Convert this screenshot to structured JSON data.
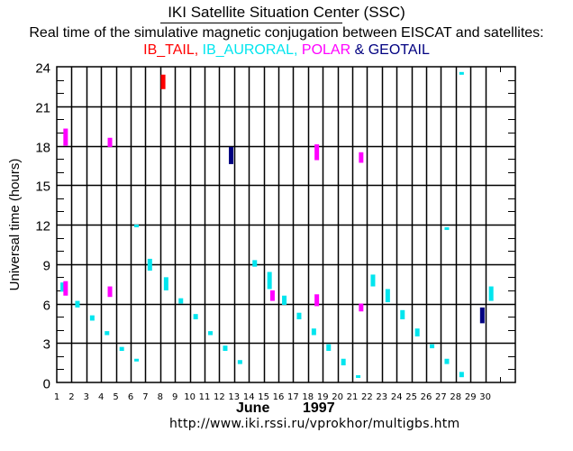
{
  "header": {
    "title": "IKI Satellite Situation Center (SSC)",
    "subtitle": "Real time of the simulative magnetic conjugation between EISCAT and satellites:"
  },
  "legend": [
    {
      "label": "IB_TAIL,",
      "color": "#ff0000"
    },
    {
      "label": " IB_AURORAL,",
      "color": "#00e5ee"
    },
    {
      "label": " POLAR",
      "color": "#ff00ff"
    },
    {
      "label": " & GEOTAIL",
      "color": "#000080"
    }
  ],
  "footer": {
    "month": "June",
    "year": "1997",
    "url": "http://www.iki.rssi.ru/vprokhor/multigbs.htm"
  },
  "chart_data": {
    "type": "scatter",
    "title": "IKI Satellite Situation Center (SSC)",
    "xlabel": "June 1997",
    "ylabel": "Universal time (hours)",
    "xlim": [
      1,
      32
    ],
    "ylim": [
      0,
      24
    ],
    "x_ticks": [
      1,
      2,
      3,
      4,
      5,
      6,
      7,
      8,
      9,
      10,
      11,
      12,
      13,
      14,
      15,
      16,
      17,
      18,
      19,
      20,
      21,
      22,
      23,
      24,
      25,
      26,
      27,
      28,
      29,
      30
    ],
    "y_ticks": [
      0,
      3,
      6,
      9,
      12,
      15,
      18,
      21,
      24
    ],
    "grid": true,
    "legend_position": "top-center",
    "series": [
      {
        "name": "IB_TAIL",
        "color": "#ff0000",
        "intervals": [
          {
            "day": 8.2,
            "start": 22.3,
            "end": 23.4
          }
        ]
      },
      {
        "name": "IB_AURORAL",
        "color": "#00e5ee",
        "intervals": [
          {
            "day": 1.4,
            "start": 6.9,
            "end": 7.6
          },
          {
            "day": 2.4,
            "start": 5.7,
            "end": 6.2
          },
          {
            "day": 3.4,
            "start": 4.7,
            "end": 5.1
          },
          {
            "day": 4.4,
            "start": 3.6,
            "end": 3.9
          },
          {
            "day": 5.4,
            "start": 2.4,
            "end": 2.7
          },
          {
            "day": 6.4,
            "start": 1.6,
            "end": 1.8
          },
          {
            "day": 6.4,
            "start": 11.9,
            "end": 12.0
          },
          {
            "day": 7.3,
            "start": 8.5,
            "end": 9.4
          },
          {
            "day": 8.4,
            "start": 7.0,
            "end": 8.0
          },
          {
            "day": 9.4,
            "start": 6.0,
            "end": 6.4
          },
          {
            "day": 10.4,
            "start": 4.8,
            "end": 5.2
          },
          {
            "day": 11.4,
            "start": 3.6,
            "end": 3.9
          },
          {
            "day": 12.4,
            "start": 2.4,
            "end": 2.8
          },
          {
            "day": 13.4,
            "start": 1.4,
            "end": 1.7
          },
          {
            "day": 14.4,
            "start": 8.8,
            "end": 9.3
          },
          {
            "day": 15.4,
            "start": 7.1,
            "end": 8.4
          },
          {
            "day": 16.4,
            "start": 5.9,
            "end": 6.6
          },
          {
            "day": 17.4,
            "start": 4.8,
            "end": 5.3
          },
          {
            "day": 18.4,
            "start": 3.6,
            "end": 4.1
          },
          {
            "day": 19.4,
            "start": 2.4,
            "end": 2.9
          },
          {
            "day": 20.4,
            "start": 1.3,
            "end": 1.8
          },
          {
            "day": 21.4,
            "start": 0.45,
            "end": 0.55
          },
          {
            "day": 22.4,
            "start": 7.3,
            "end": 8.2
          },
          {
            "day": 23.4,
            "start": 6.1,
            "end": 7.1
          },
          {
            "day": 24.4,
            "start": 4.8,
            "end": 5.5
          },
          {
            "day": 25.4,
            "start": 3.5,
            "end": 4.1
          },
          {
            "day": 26.4,
            "start": 2.6,
            "end": 2.9
          },
          {
            "day": 27.4,
            "start": 1.4,
            "end": 1.8
          },
          {
            "day": 27.4,
            "start": 11.6,
            "end": 11.8
          },
          {
            "day": 28.4,
            "start": 0.4,
            "end": 0.8
          },
          {
            "day": 28.4,
            "start": 23.4,
            "end": 23.6
          },
          {
            "day": 30.4,
            "start": 6.2,
            "end": 7.3
          }
        ]
      },
      {
        "name": "POLAR",
        "color": "#ff00ff",
        "intervals": [
          {
            "day": 1.6,
            "start": 18.0,
            "end": 19.3
          },
          {
            "day": 4.6,
            "start": 17.9,
            "end": 18.6
          },
          {
            "day": 1.6,
            "start": 6.6,
            "end": 7.7
          },
          {
            "day": 4.6,
            "start": 6.5,
            "end": 7.3
          },
          {
            "day": 15.6,
            "start": 6.2,
            "end": 7.0
          },
          {
            "day": 18.6,
            "start": 16.9,
            "end": 18.1
          },
          {
            "day": 18.6,
            "start": 5.8,
            "end": 6.7
          },
          {
            "day": 21.6,
            "start": 16.7,
            "end": 17.5
          },
          {
            "day": 21.6,
            "start": 5.4,
            "end": 6.0
          }
        ]
      },
      {
        "name": "GEOTAIL",
        "color": "#000080",
        "intervals": [
          {
            "day": 12.8,
            "start": 16.6,
            "end": 17.9
          },
          {
            "day": 29.8,
            "start": 4.5,
            "end": 5.7
          }
        ]
      }
    ]
  }
}
